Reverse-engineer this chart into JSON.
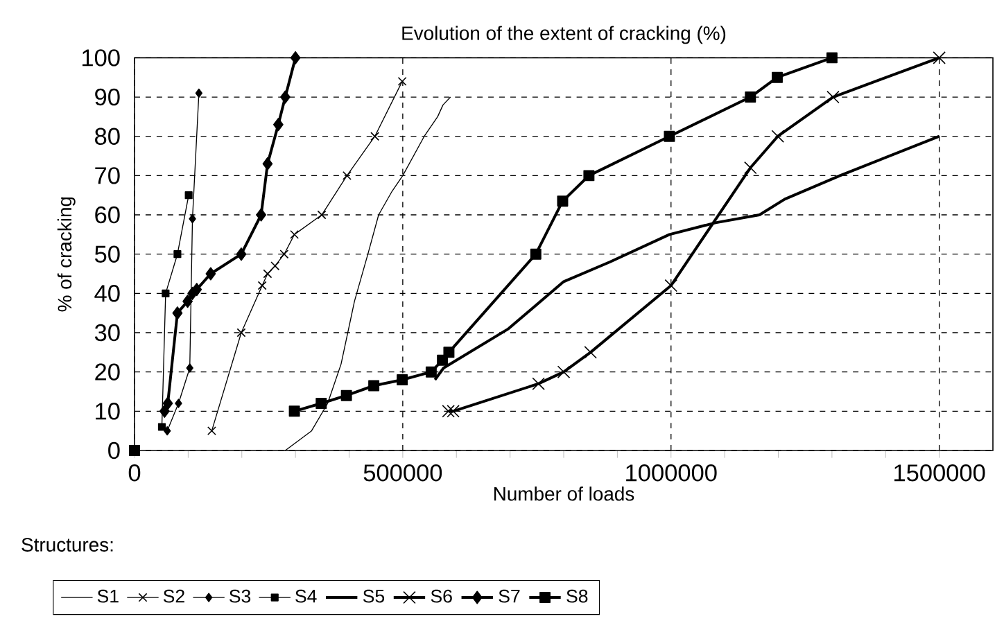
{
  "chart_data": {
    "type": "line",
    "title": "Evolution of the extent of cracking (%)",
    "xlabel": "Number of loads",
    "ylabel": "% of cracking",
    "xlim": [
      0,
      1600000
    ],
    "ylim": [
      0,
      100
    ],
    "xticks": [
      0,
      500000,
      1000000,
      1500000
    ],
    "yticks": [
      0,
      10,
      20,
      30,
      40,
      50,
      60,
      70,
      80,
      90,
      100
    ],
    "grid": true,
    "legend": "bottom",
    "line_style": "solid",
    "annotations": [
      "Structures:"
    ],
    "series": [
      {
        "name": "S1",
        "color": "#000000",
        "marker": "none",
        "x": [
          281000,
          330000,
          360000,
          385000,
          410000,
          435000,
          455000,
          480000,
          500000,
          520000,
          540000,
          565000,
          575000,
          589000
        ],
        "values": [
          0,
          5,
          12,
          22,
          38,
          50,
          60,
          66,
          70,
          75,
          80,
          85,
          88,
          90
        ]
      },
      {
        "name": "S2",
        "color": "#000000",
        "marker": "cross",
        "x": [
          144000,
          199000,
          238000,
          248000,
          262000,
          279000,
          298000,
          349000,
          396000,
          448000,
          499000
        ],
        "values": [
          5,
          30,
          42,
          45,
          47,
          50,
          55,
          60,
          70,
          80,
          94
        ]
      },
      {
        "name": "S3",
        "color": "#000000",
        "marker": "diamond",
        "x": [
          61000,
          82000,
          103000,
          108000,
          120000
        ],
        "values": [
          5,
          12,
          21,
          59,
          91
        ]
      },
      {
        "name": "S4",
        "color": "#000000",
        "marker": "square",
        "x": [
          51000,
          58000,
          80000,
          101000
        ],
        "values": [
          6,
          40,
          50,
          65
        ]
      },
      {
        "name": "S5",
        "color": "#000000",
        "marker": "none",
        "x": [
          560000,
          576000,
          697000,
          800000,
          886000,
          997000,
          1083000,
          1165000,
          1212000,
          1315000,
          1500000
        ],
        "values": [
          18,
          21,
          31,
          43,
          48,
          55,
          58,
          60,
          64,
          70,
          80
        ]
      },
      {
        "name": "S6",
        "color": "#000000",
        "marker": "cross",
        "x": [
          585000,
          594000,
          753000,
          800000,
          850000,
          1000000,
          1148000,
          1199000,
          1302000,
          1500000
        ],
        "values": [
          10,
          10,
          17,
          20,
          25,
          42,
          72,
          80,
          90,
          100
        ]
      },
      {
        "name": "S7",
        "color": "#000000",
        "marker": "diamond",
        "x": [
          56000,
          62000,
          80000,
          99000,
          108000,
          116000,
          142000,
          199000,
          236000,
          248000,
          268000,
          281000,
          300000
        ],
        "values": [
          10,
          12,
          35,
          38,
          40,
          41,
          45,
          50,
          60,
          73,
          83,
          90,
          100
        ]
      },
      {
        "name": "S8",
        "color": "#000000",
        "marker": "square",
        "x": [
          0,
          150000,
          298000,
          348000,
          395000,
          446000,
          499000,
          553000,
          574000,
          586000,
          748000,
          798000,
          847000,
          997000,
          1148000,
          1198000,
          1300000
        ],
        "values": [
          0,
          null,
          10,
          12,
          14,
          16.5,
          18,
          20,
          23,
          25,
          50,
          63.5,
          70,
          80,
          90,
          95,
          100
        ]
      }
    ]
  }
}
